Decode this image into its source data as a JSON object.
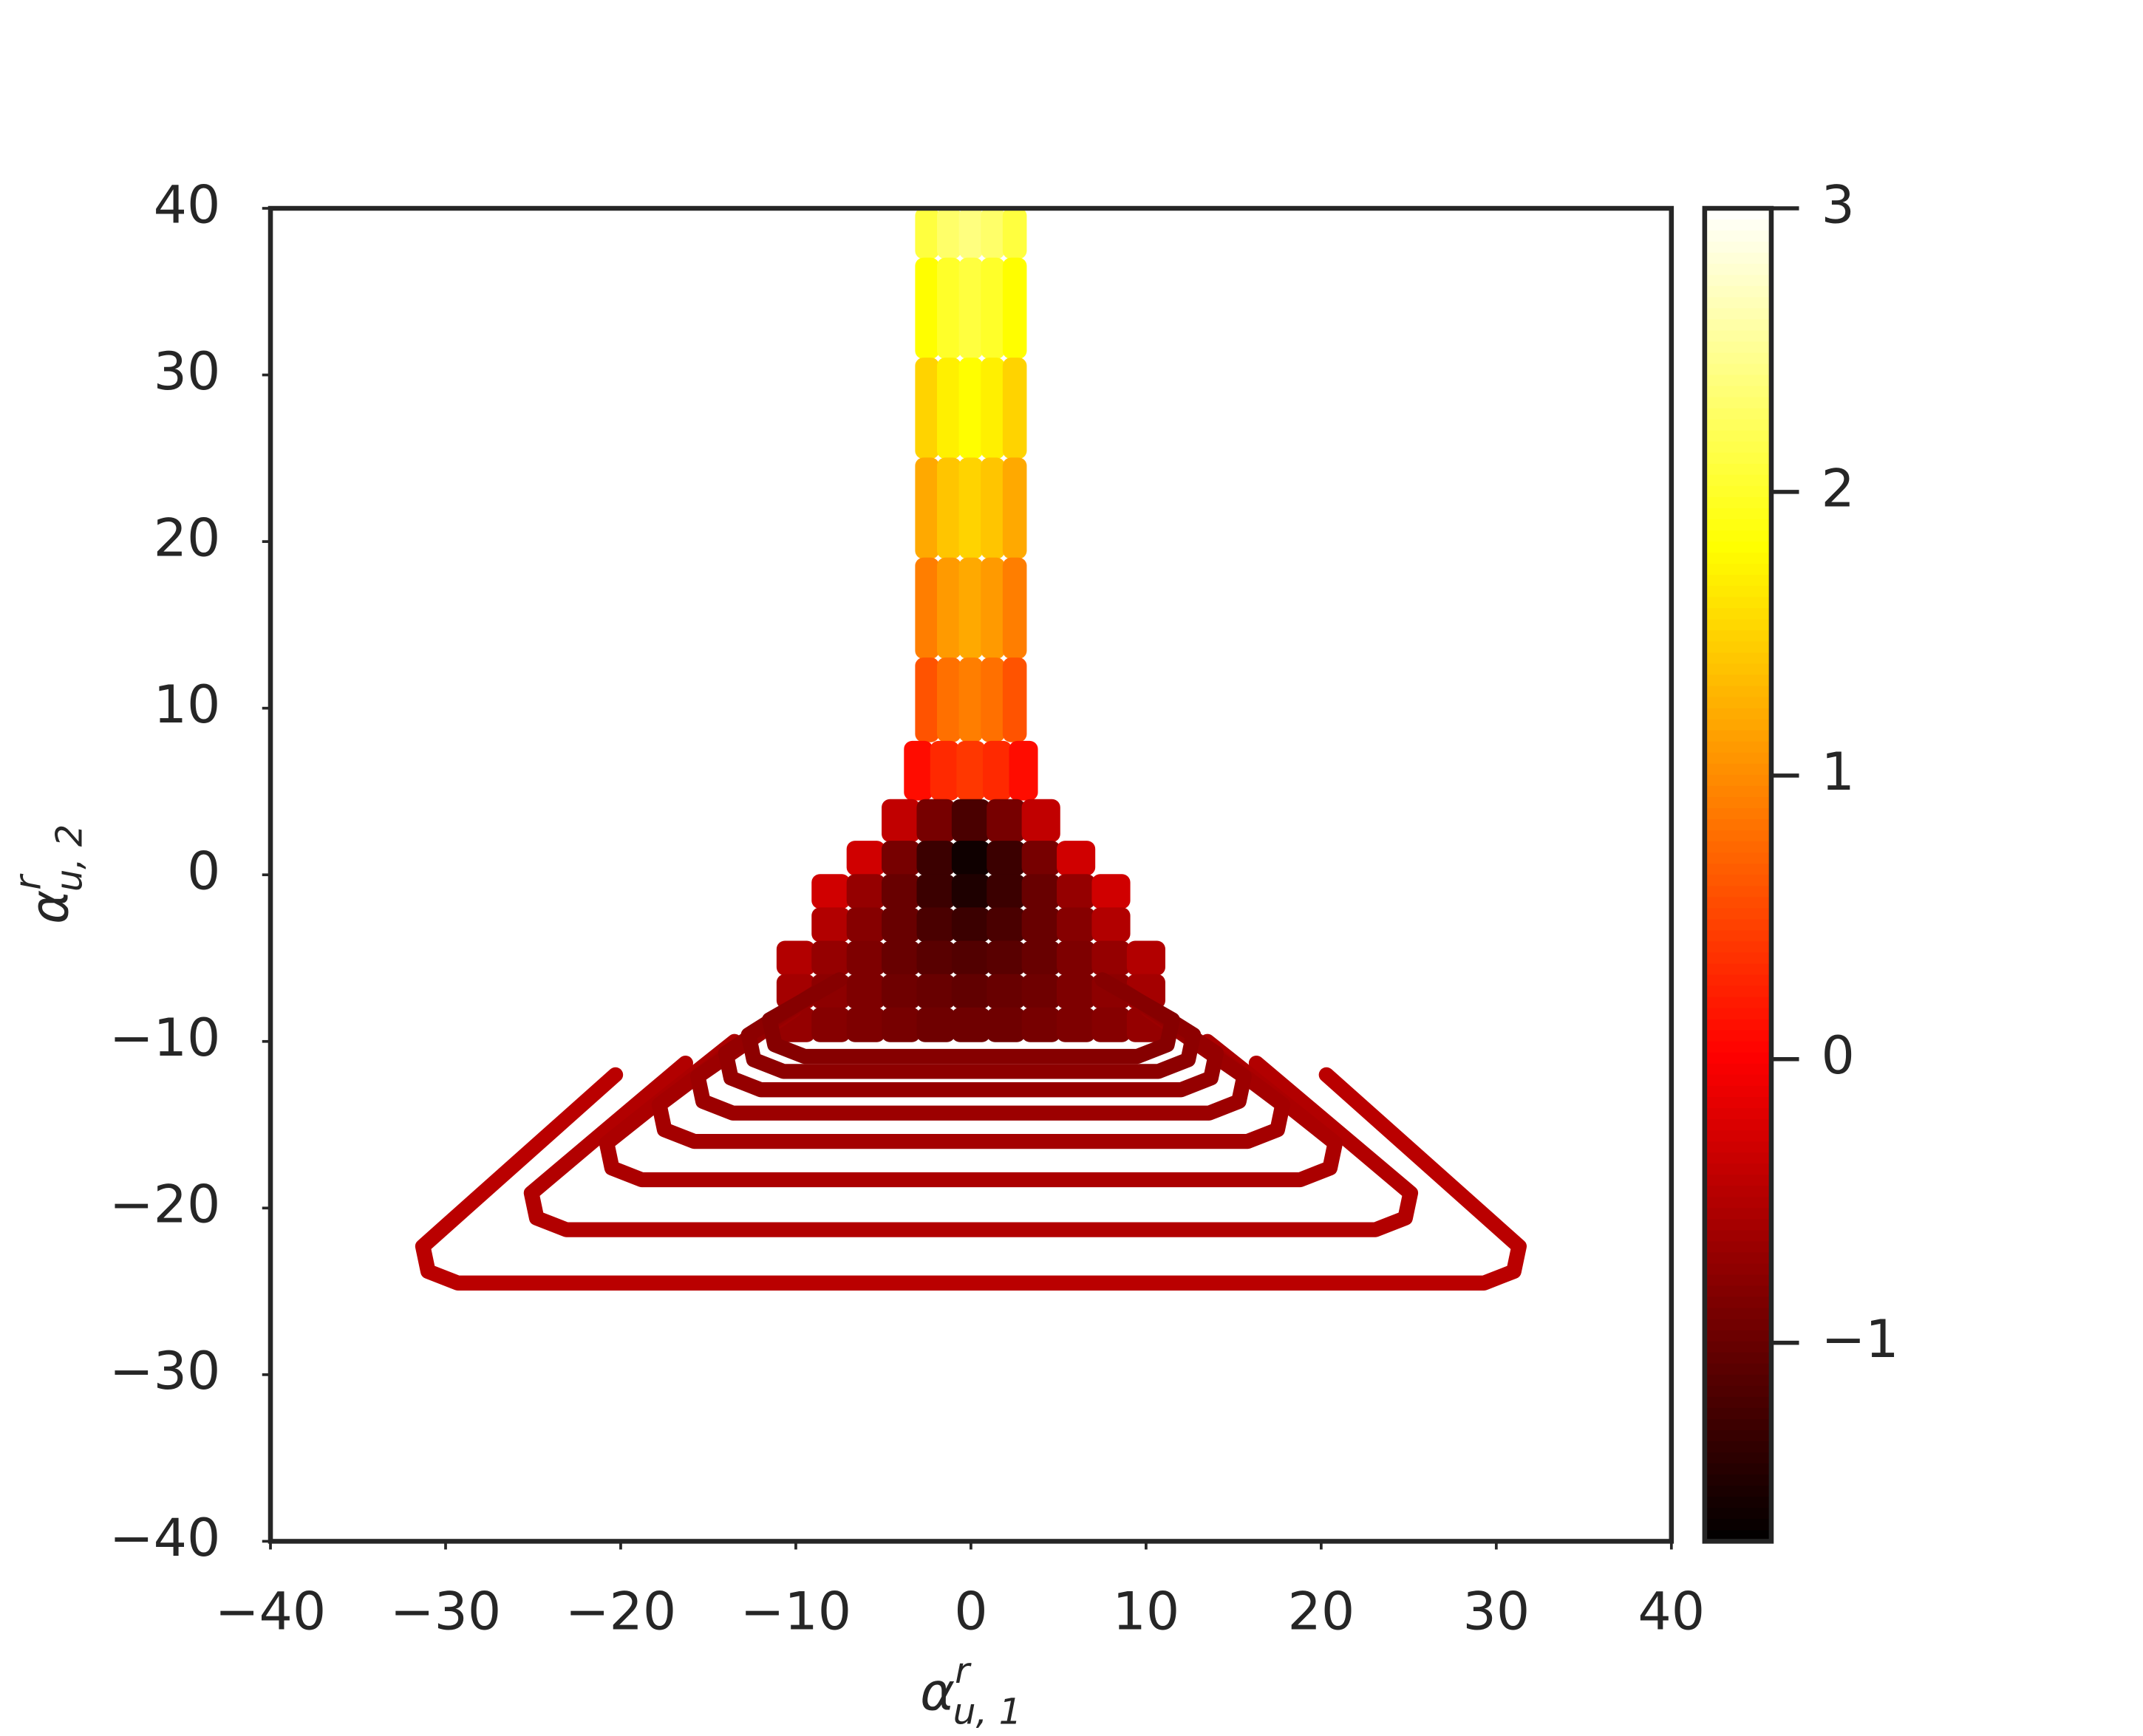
{
  "chart_data": {
    "type": "scatter",
    "xlabel": {
      "base": "α",
      "sup": "r",
      "sub": "u, 1"
    },
    "ylabel": {
      "base": "α",
      "sup": "r",
      "sub": "u, 2"
    },
    "xlim": [
      -40,
      40
    ],
    "ylim": [
      -40,
      40
    ],
    "xticks": [
      {
        "value": -40,
        "label": "−40"
      },
      {
        "value": -30,
        "label": "−30"
      },
      {
        "value": -20,
        "label": "−20"
      },
      {
        "value": -10,
        "label": "−10"
      },
      0,
      10,
      20,
      30,
      40
    ],
    "yticks": [
      {
        "value": -40,
        "label": "−40"
      },
      {
        "value": -30,
        "label": "−30"
      },
      {
        "value": -20,
        "label": "−20"
      },
      {
        "value": -10,
        "label": "−10"
      },
      0,
      10,
      20,
      30,
      40
    ],
    "colormap": "hot",
    "clim": [
      -1.7,
      3
    ],
    "cticks": [
      {
        "value": -1,
        "label": "−1"
      },
      0,
      1,
      2,
      3
    ],
    "field": [
      {
        "y": 40,
        "x": [
          -2.5,
          -1.25,
          0,
          1.25,
          2.5
        ],
        "c": [
          2.1,
          2.3,
          2.4,
          2.3,
          2.1
        ]
      },
      {
        "y": 34,
        "x": [
          -2.5,
          -1.25,
          0,
          1.25,
          2.5
        ],
        "c": [
          1.8,
          2.0,
          2.1,
          2.0,
          1.8
        ]
      },
      {
        "y": 28,
        "x": [
          -2.5,
          -1.25,
          0,
          1.25,
          2.5
        ],
        "c": [
          1.5,
          1.7,
          1.8,
          1.7,
          1.5
        ]
      },
      {
        "y": 22,
        "x": [
          -2.5,
          -1.25,
          0,
          1.25,
          2.5
        ],
        "c": [
          1.2,
          1.4,
          1.5,
          1.4,
          1.2
        ]
      },
      {
        "y": 16,
        "x": [
          -2.5,
          -1.25,
          0,
          1.25,
          2.5
        ],
        "c": [
          0.9,
          1.1,
          1.2,
          1.1,
          0.9
        ]
      },
      {
        "y": 10,
        "x": [
          -2.5,
          -1.25,
          0,
          1.25,
          2.5
        ],
        "c": [
          0.6,
          0.8,
          0.9,
          0.8,
          0.6
        ]
      },
      {
        "y": 6,
        "x": [
          -3,
          -1.5,
          0,
          1.5,
          3
        ],
        "c": [
          0.1,
          0.3,
          0.4,
          0.3,
          0.1
        ]
      },
      {
        "y": 3,
        "x": [
          -4,
          -2,
          0,
          2,
          4
        ],
        "c": [
          -0.4,
          -0.9,
          -1.2,
          -0.9,
          -0.4
        ]
      },
      {
        "y": 1,
        "x": [
          -6,
          -4,
          -2,
          0,
          2,
          4,
          6
        ],
        "c": [
          -0.3,
          -0.9,
          -1.3,
          -1.6,
          -1.3,
          -0.9,
          -0.3
        ]
      },
      {
        "y": -1,
        "x": [
          -8,
          -6,
          -4,
          -2,
          0,
          2,
          4,
          6,
          8
        ],
        "c": [
          -0.3,
          -0.7,
          -1.0,
          -1.3,
          -1.5,
          -1.3,
          -1.0,
          -0.7,
          -0.3
        ]
      },
      {
        "y": -3,
        "x": [
          -8,
          -6,
          -4,
          -2,
          0,
          2,
          4,
          6,
          8
        ],
        "c": [
          -0.5,
          -0.8,
          -1.0,
          -1.2,
          -1.3,
          -1.2,
          -1.0,
          -0.8,
          -0.5
        ]
      },
      {
        "y": -5,
        "x": [
          -10,
          -8,
          -6,
          -4,
          -2,
          0,
          2,
          4,
          6,
          8,
          10
        ],
        "c": [
          -0.5,
          -0.7,
          -0.85,
          -1.0,
          -1.1,
          -1.15,
          -1.1,
          -1.0,
          -0.85,
          -0.7,
          -0.5
        ]
      },
      {
        "y": -7,
        "x": [
          -10,
          -8,
          -6,
          -4,
          -2,
          0,
          2,
          4,
          6,
          8,
          10
        ],
        "c": [
          -0.6,
          -0.75,
          -0.85,
          -0.95,
          -1.0,
          -1.05,
          -1.0,
          -0.95,
          -0.85,
          -0.75,
          -0.6
        ]
      },
      {
        "y": -9,
        "x": [
          -10,
          -8,
          -6,
          -4,
          -2,
          0,
          2,
          4,
          6,
          8,
          10
        ],
        "c": [
          -0.7,
          -0.8,
          -0.85,
          -0.9,
          -0.95,
          -0.95,
          -0.95,
          -0.9,
          -0.85,
          -0.8,
          -0.7
        ]
      }
    ],
    "loops": [
      {
        "value": -0.45,
        "x": [
          -20.3,
          -31.3,
          -31.0,
          -29.3,
          0,
          29.3,
          31.0,
          31.3,
          20.3
        ],
        "y": [
          -12.0,
          -22.3,
          -23.8,
          -24.5,
          -24.5,
          -24.5,
          -23.8,
          -22.3,
          -12.0
        ]
      },
      {
        "value": -0.5,
        "x": [
          -16.3,
          -25.1,
          -24.8,
          -23.1,
          0,
          23.1,
          24.8,
          25.1,
          16.3
        ],
        "y": [
          -11.3,
          -19.1,
          -20.6,
          -21.3,
          -21.3,
          -21.3,
          -20.6,
          -19.1,
          -11.3
        ]
      },
      {
        "value": -0.55,
        "x": [
          -13.5,
          -20.8,
          -20.5,
          -18.8,
          0,
          18.8,
          20.5,
          20.8,
          13.5
        ],
        "y": [
          -10.0,
          -16.1,
          -17.6,
          -18.3,
          -18.3,
          -18.3,
          -17.6,
          -16.1,
          -10.0
        ]
      },
      {
        "value": -0.6,
        "x": [
          -11.6,
          -17.8,
          -17.5,
          -15.8,
          0,
          15.8,
          17.5,
          17.8,
          11.6
        ],
        "y": [
          -8.9,
          -13.8,
          -15.3,
          -16.0,
          -16.0,
          -16.0,
          -15.3,
          -13.8,
          -8.9
        ]
      },
      {
        "value": -0.65,
        "x": [
          -10.1,
          -15.6,
          -15.3,
          -13.6,
          0,
          13.6,
          15.3,
          15.6,
          10.1
        ],
        "y": [
          -8.1,
          -12.1,
          -13.6,
          -14.3,
          -14.3,
          -14.3,
          -13.6,
          -12.1,
          -8.1
        ]
      },
      {
        "value": -0.7,
        "x": [
          -9.1,
          -14.0,
          -13.7,
          -12.0,
          0,
          12.0,
          13.7,
          14.0,
          9.1
        ],
        "y": [
          -7.3,
          -10.7,
          -12.2,
          -12.9,
          -12.9,
          -12.9,
          -12.2,
          -10.7,
          -7.3
        ]
      },
      {
        "value": -0.75,
        "x": [
          -8.3,
          -12.7,
          -12.4,
          -10.7,
          0,
          10.7,
          12.4,
          12.7,
          8.3
        ],
        "y": [
          -6.7,
          -9.6,
          -11.1,
          -11.8,
          -11.8,
          -11.8,
          -11.1,
          -9.6,
          -6.7
        ]
      },
      {
        "value": -0.8,
        "x": [
          -7.5,
          -11.5,
          -11.2,
          -9.5,
          0,
          9.5,
          11.2,
          11.5,
          7.5
        ],
        "y": [
          -6.3,
          -8.7,
          -10.2,
          -10.9,
          -10.9,
          -10.9,
          -10.2,
          -8.7,
          -6.3
        ]
      }
    ]
  }
}
